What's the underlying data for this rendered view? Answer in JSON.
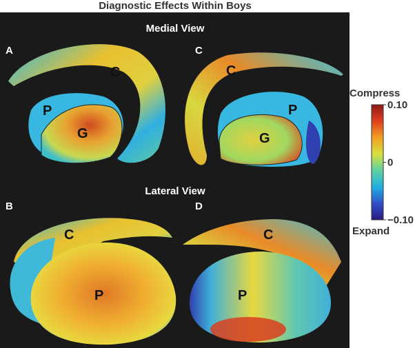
{
  "title": "Diagnostic Effects Within Boys",
  "views": [
    {
      "label": "Medial View"
    },
    {
      "label": "Lateral View"
    }
  ],
  "panels": [
    {
      "letter": "A",
      "regions": [
        "C",
        "P",
        "G"
      ]
    },
    {
      "letter": "C",
      "regions": [
        "C",
        "P",
        "G"
      ]
    },
    {
      "letter": "B",
      "regions": [
        "C",
        "P"
      ]
    },
    {
      "letter": "D",
      "regions": [
        "C",
        "P"
      ]
    }
  ],
  "colorbar": {
    "top_label": "Compress",
    "bottom_label": "Expand",
    "lim": [
      -0.1,
      0.1
    ],
    "ticks": [
      {
        "value": 0.1,
        "label": "0.10"
      },
      0,
      {
        "value": -0.1,
        "label": "−0.10"
      }
    ],
    "colors": [
      "#2a1a80",
      "#3050c8",
      "#20b0e0",
      "#60d0a0",
      "#d8e040",
      "#f0a020",
      "#e04020",
      "#901818"
    ]
  }
}
